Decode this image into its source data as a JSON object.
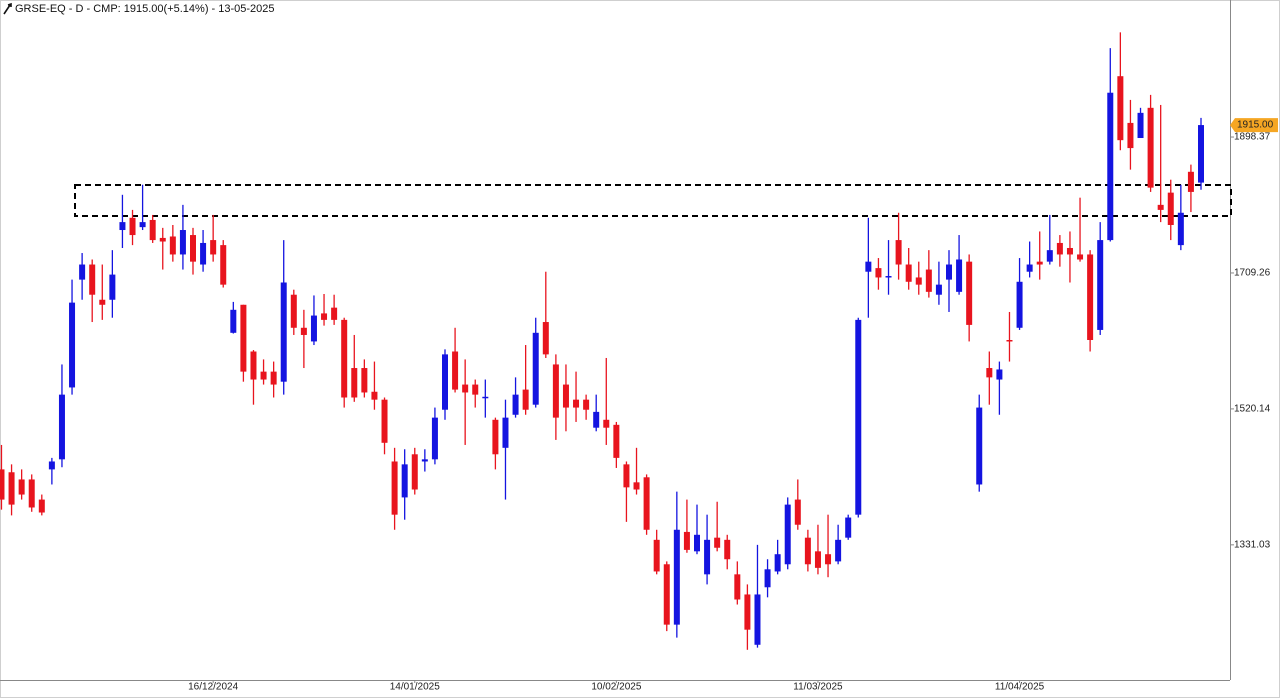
{
  "chart_data": {
    "type": "candlestick",
    "title": "GRSE-EQ - D - CMP: 1915.00(+5.14%) - 13-05-2025",
    "last_price_label": "1915.00",
    "up_color": "#1414e0",
    "down_color": "#e8141e",
    "tag_color": "#f5a623",
    "ylim": [
      1143,
      2089
    ],
    "yticks": [
      1331.03,
      1520.14,
      1709.26,
      1898.37
    ],
    "categories": [
      null,
      null,
      null,
      null,
      null,
      null,
      null,
      null,
      null,
      null,
      null,
      null,
      null,
      null,
      null,
      null,
      null,
      null,
      null,
      null,
      null,
      "16/12/2024",
      null,
      null,
      null,
      null,
      null,
      null,
      null,
      null,
      null,
      null,
      null,
      null,
      null,
      null,
      null,
      null,
      null,
      null,
      null,
      "14/01/2025",
      null,
      null,
      null,
      null,
      null,
      null,
      null,
      null,
      null,
      null,
      null,
      null,
      null,
      null,
      null,
      null,
      null,
      null,
      null,
      "10/02/2025",
      null,
      null,
      null,
      null,
      null,
      null,
      null,
      null,
      null,
      null,
      null,
      null,
      null,
      null,
      null,
      null,
      null,
      null,
      null,
      "11/03/2025",
      null,
      null,
      null,
      null,
      null,
      null,
      null,
      null,
      null,
      null,
      null,
      null,
      null,
      null,
      null,
      null,
      null,
      null,
      null,
      "11/04/2025",
      null,
      null,
      null,
      null,
      null,
      null,
      null,
      null,
      null,
      null,
      null,
      null,
      null,
      null,
      null,
      null,
      null,
      null
    ],
    "open": [
      1436,
      1432,
      1422,
      1422,
      1394,
      1436,
      1450,
      1550,
      1700,
      1721,
      1672,
      1672,
      1769,
      1786,
      1773,
      1783,
      1758,
      1760,
      1735,
      1762,
      1721,
      1755,
      1748,
      1626,
      1665,
      1600,
      1572,
      1572,
      1558,
      1679,
      1633,
      1614,
      1653,
      1661,
      1644,
      1577,
      1577,
      1544,
      1533,
      1447,
      1397,
      1457,
      1447,
      1450,
      1519,
      1600,
      1554,
      1554,
      1536,
      1505,
      1466,
      1512,
      1547,
      1526,
      1641,
      1582,
      1554,
      1533,
      1533,
      1494,
      1505,
      1498,
      1443,
      1418,
      1425,
      1338,
      1304,
      1220,
      1349,
      1322,
      1290,
      1341,
      1338,
      1290,
      1262,
      1192,
      1272,
      1294,
      1304,
      1394,
      1341,
      1322,
      1318,
      1308,
      1341,
      1373,
      1711,
      1716,
      1703,
      1755,
      1721,
      1703,
      1714,
      1679,
      1700,
      1683,
      1725,
      1415,
      1577,
      1561,
      1616,
      1633,
      1711,
      1725,
      1725,
      1751,
      1744,
      1735,
      1735,
      1630,
      1755,
      1983,
      1918,
      1897,
      1939,
      1804,
      1821,
      1748,
      1850,
      1835
    ],
    "high": [
      1470,
      1443,
      1436,
      1429,
      1401,
      1452,
      1582,
      1700,
      1737,
      1728,
      1721,
      1741,
      1818,
      1797,
      1832,
      1790,
      1772,
      1776,
      1804,
      1772,
      1769,
      1790,
      1755,
      1669,
      1665,
      1602,
      1589,
      1586,
      1755,
      1686,
      1658,
      1678,
      1680,
      1679,
      1647,
      1623,
      1589,
      1586,
      1536,
      1466,
      1464,
      1466,
      1464,
      1522,
      1603,
      1633,
      1589,
      1561,
      1561,
      1508,
      1533,
      1564,
      1609,
      1647,
      1711,
      1596,
      1582,
      1572,
      1540,
      1540,
      1591,
      1502,
      1447,
      1466,
      1429,
      1352,
      1308,
      1405,
      1394,
      1387,
      1373,
      1391,
      1345,
      1308,
      1276,
      1331,
      1311,
      1338,
      1397,
      1422,
      1352,
      1359,
      1373,
      1359,
      1373,
      1647,
      1786,
      1730,
      1755,
      1793,
      1744,
      1725,
      1741,
      1725,
      1741,
      1762,
      1735,
      1540,
      1600,
      1586,
      1655,
      1730,
      1753,
      1767,
      1790,
      1762,
      1767,
      1814,
      1741,
      1780,
      2022,
      2044,
      1950,
      1939,
      1957,
      1943,
      1839,
      1832,
      1860,
      1925
    ],
    "low": [
      1380,
      1372,
      1394,
      1377,
      1372,
      1415,
      1439,
      1540,
      1672,
      1641,
      1644,
      1647,
      1744,
      1748,
      1769,
      1751,
      1714,
      1725,
      1714,
      1707,
      1711,
      1725,
      1689,
      1625,
      1558,
      1526,
      1554,
      1536,
      1540,
      1623,
      1577,
      1609,
      1636,
      1637,
      1522,
      1530,
      1536,
      1519,
      1457,
      1352,
      1366,
      1401,
      1433,
      1443,
      1505,
      1543,
      1470,
      1522,
      1508,
      1436,
      1394,
      1508,
      1512,
      1522,
      1591,
      1477,
      1489,
      1502,
      1505,
      1489,
      1470,
      1438,
      1363,
      1401,
      1345,
      1290,
      1211,
      1202,
      1320,
      1318,
      1276,
      1322,
      1297,
      1248,
      1185,
      1188,
      1258,
      1290,
      1297,
      1352,
      1294,
      1290,
      1286,
      1304,
      1338,
      1369,
      1647,
      1686,
      1679,
      1700,
      1686,
      1679,
      1675,
      1665,
      1655,
      1679,
      1614,
      1405,
      1526,
      1512,
      1586,
      1630,
      1703,
      1700,
      1721,
      1718,
      1696,
      1725,
      1600,
      1623,
      1753,
      1880,
      1853,
      1897,
      1822,
      1780,
      1755,
      1741,
      1794,
      1825
    ],
    "close": [
      1394,
      1387,
      1401,
      1383,
      1376,
      1447,
      1540,
      1668,
      1721,
      1679,
      1665,
      1707,
      1780,
      1762,
      1780,
      1755,
      1753,
      1735,
      1769,
      1725,
      1751,
      1735,
      1693,
      1658,
      1572,
      1561,
      1561,
      1554,
      1696,
      1633,
      1623,
      1650,
      1644,
      1644,
      1536,
      1536,
      1543,
      1533,
      1473,
      1373,
      1443,
      1408,
      1450,
      1508,
      1596,
      1547,
      1543,
      1540,
      1537,
      1457,
      1508,
      1540,
      1519,
      1626,
      1596,
      1508,
      1522,
      1522,
      1519,
      1516,
      1494,
      1452,
      1411,
      1408,
      1352,
      1294,
      1220,
      1352,
      1324,
      1345,
      1338,
      1327,
      1311,
      1255,
      1213,
      1262,
      1297,
      1318,
      1387,
      1359,
      1304,
      1299,
      1304,
      1338,
      1369,
      1644,
      1725,
      1703,
      1705,
      1721,
      1697,
      1693,
      1683,
      1693,
      1721,
      1728,
      1637,
      1522,
      1564,
      1575,
      1614,
      1697,
      1721,
      1721,
      1741,
      1735,
      1735,
      1728,
      1616,
      1755,
      1960,
      1894,
      1883,
      1932,
      1828,
      1797,
      1776,
      1793,
      1822,
      1915
    ]
  }
}
